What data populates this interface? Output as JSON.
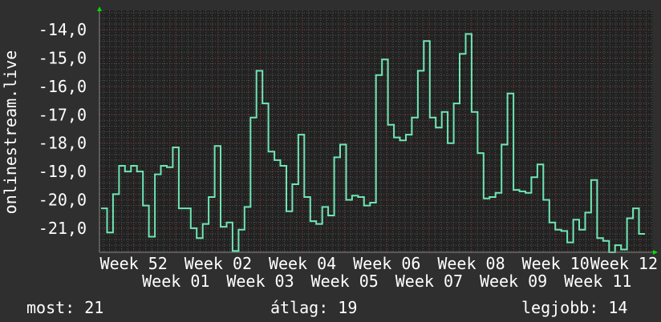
{
  "chart_data": {
    "type": "line",
    "step": true,
    "ylabel": "onlinestream.live",
    "ylim": [
      -21.85,
      -13.32
    ],
    "yticks": [
      "-14,0",
      "-15,0",
      "-16,0",
      "-17,0",
      "-18,0",
      "-19,0",
      "-20,0",
      "-21,0"
    ],
    "ytick_values": [
      -14,
      -15,
      -16,
      -17,
      -18,
      -19,
      -20,
      -21
    ],
    "xticks": [
      "Week 52",
      "Week 01",
      "Week 02",
      "Week 03",
      "Week 04",
      "Week 05",
      "Week 06",
      "Week 07",
      "Week 08",
      "Week 09",
      "Week 10",
      "Week 11",
      "Week 12"
    ],
    "grid": true,
    "line_color": "#6ee6b4",
    "values": [
      -20.3,
      -21.15,
      -19.8,
      -18.8,
      -19.0,
      -18.8,
      -19.0,
      -20.2,
      -21.3,
      -19.1,
      -18.8,
      -18.85,
      -18.15,
      -20.3,
      -20.3,
      -21.0,
      -21.35,
      -20.85,
      -19.9,
      -18.1,
      -20.95,
      -20.8,
      -21.8,
      -21.05,
      -20.25,
      -17.1,
      -15.45,
      -16.6,
      -18.3,
      -18.6,
      -18.8,
      -20.4,
      -19.45,
      -17.7,
      -19.9,
      -20.75,
      -20.85,
      -20.25,
      -20.55,
      -18.5,
      -18.05,
      -20.0,
      -19.85,
      -19.9,
      -20.2,
      -20.1,
      -15.6,
      -15.05,
      -17.35,
      -17.8,
      -17.9,
      -17.7,
      -17.1,
      -15.45,
      -14.4,
      -17.1,
      -17.45,
      -16.9,
      -18.0,
      -16.6,
      -14.85,
      -14.15,
      -16.9,
      -18.35,
      -19.95,
      -19.9,
      -19.75,
      -18.05,
      -16.25,
      -19.65,
      -19.7,
      -19.75,
      -19.2,
      -18.75,
      -20.0,
      -20.8,
      -21.05,
      -21.1,
      -21.5,
      -20.7,
      -21.05,
      -20.45,
      -19.3,
      -21.35,
      -21.45,
      -21.85,
      -21.6,
      -21.75,
      -20.65,
      -20.3,
      -21.2
    ]
  },
  "legend": {
    "current": "most: 21",
    "average": "átlag: 19",
    "best": "legjobb: 14"
  }
}
